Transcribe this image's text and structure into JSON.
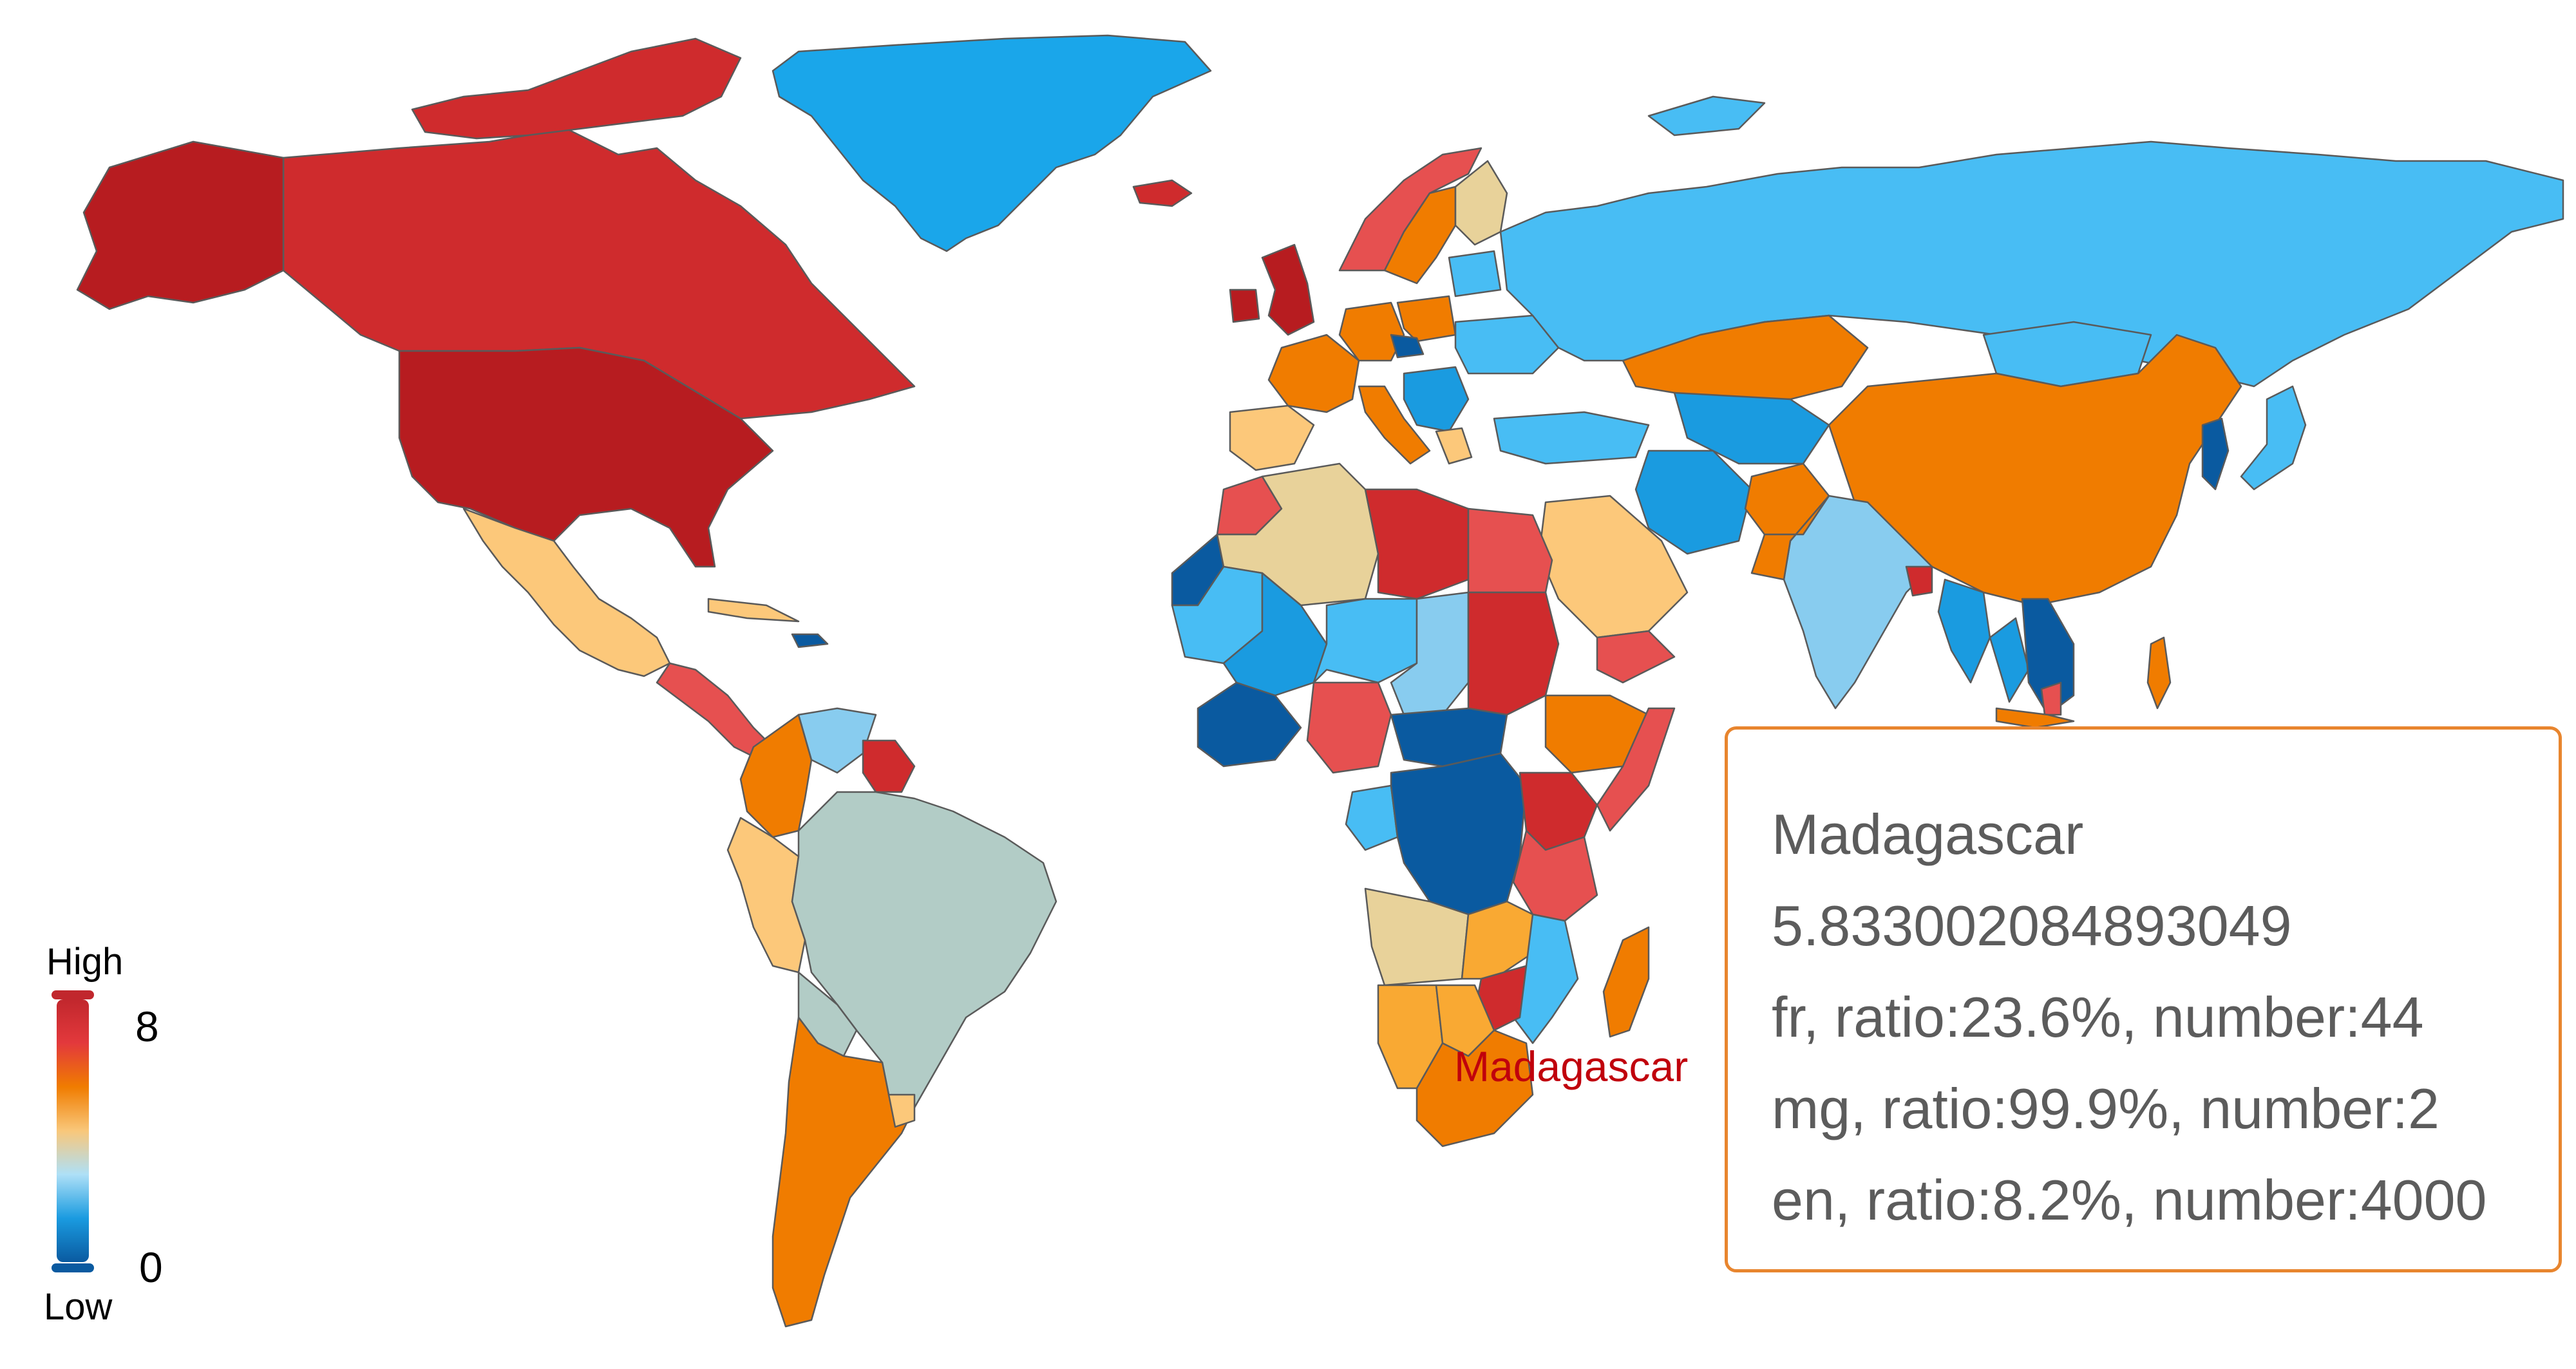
{
  "map": {
    "projection": "world",
    "colors": {
      "darkred": "#b71c20",
      "red": "#d32f30",
      "lightred": "#e65050",
      "orange": "#f07c00",
      "lightorange": "#f9a933",
      "peach": "#fcc87a",
      "tan": "#e8d29a",
      "graygreen": "#b2ccc6",
      "lightblue": "#88ccef",
      "skyblue": "#48bdf4",
      "blue": "#1a9be0",
      "midblue": "#0d84d0",
      "darkblue": "#0a5aa0"
    },
    "highlighted_country": "Madagascar",
    "map_label": "Madagascar"
  },
  "legend": {
    "high_label": "High",
    "low_label": "Low",
    "max_value": "8",
    "min_value": "0",
    "gradient": [
      "#c1272d",
      "#e3393c",
      "#f07c00",
      "#f9c77a",
      "#aee0f7",
      "#1a9be0",
      "#0a5aa0"
    ]
  },
  "tooltip": {
    "country": "Madagascar",
    "value": "5.833002084893049",
    "languages": [
      "fr, ratio:23.6%, number:44",
      "mg, ratio:99.9%, number:2",
      "en, ratio:8.2%, number:4000"
    ],
    "border_color": "#e8852e"
  }
}
